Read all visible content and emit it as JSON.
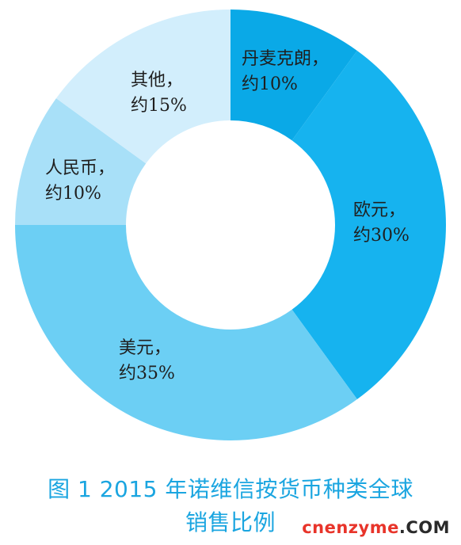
{
  "chart_data": {
    "type": "pie",
    "slices": [
      {
        "label_line1": "丹麦克朗，",
        "label_line2": "约10%",
        "value": 10,
        "color": "#0aa9e7"
      },
      {
        "label_line1": "欧元，",
        "label_line2": "约30%",
        "value": 30,
        "color": "#16b3ef"
      },
      {
        "label_line1": "美元，",
        "label_line2": "约35%",
        "value": 35,
        "color": "#6ccff4"
      },
      {
        "label_line1": "人民币，",
        "label_line2": "约10%",
        "value": 10,
        "color": "#a8e0f8"
      },
      {
        "label_line1": "其他，",
        "label_line2": "约15%",
        "value": 15,
        "color": "#d2eefc"
      }
    ],
    "title_line1": "图 1   2015 年诺维信按货币种类全球",
    "title_line2": "销售比例"
  },
  "watermark": {
    "part1": "cnenzyme",
    "part2": ".COM"
  }
}
